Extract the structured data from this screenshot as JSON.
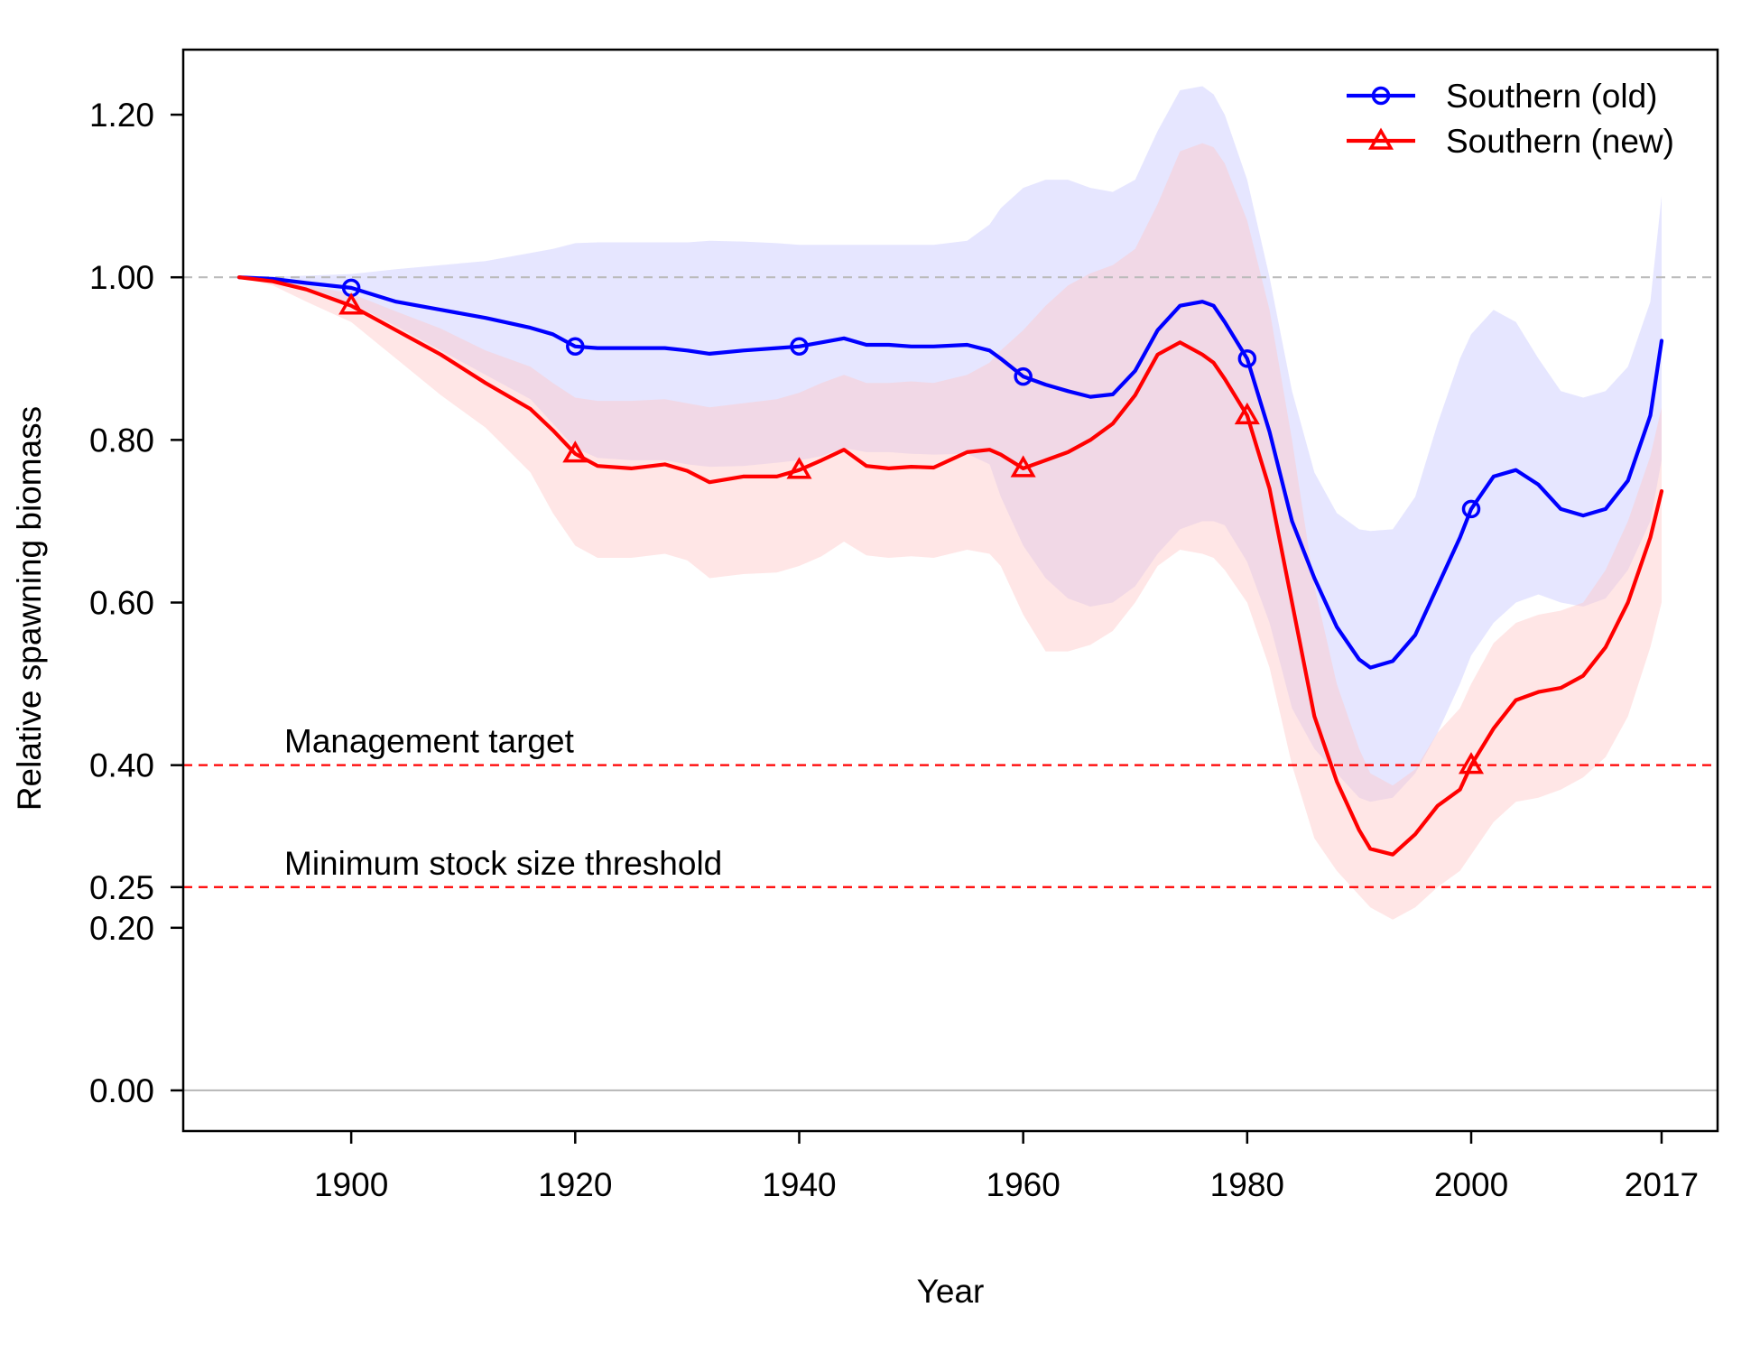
{
  "chart_data": {
    "type": "line",
    "xlabel": "Year",
    "ylabel": "Relative spawning biomass",
    "xlim": [
      1885,
      2022
    ],
    "ylim": [
      -0.05,
      1.28
    ],
    "x_ticks": [
      1900,
      1920,
      1940,
      1960,
      1980,
      2000,
      2017
    ],
    "x_tick_labels": [
      "1900",
      "1920",
      "1940",
      "1960",
      "1980",
      "2000",
      "2017"
    ],
    "y_ticks": [
      0.0,
      0.2,
      0.25,
      0.4,
      0.6,
      0.8,
      1.0,
      1.2
    ],
    "y_tick_labels": [
      "0.00",
      "0.20",
      "0.25",
      "0.40",
      "0.60",
      "0.80",
      "1.00",
      "1.20"
    ],
    "grid": false,
    "legend_position": "top-right",
    "reference_lines": [
      {
        "y": 1.0,
        "style": "dashed",
        "color": "#bbbbbb"
      },
      {
        "y": 0.0,
        "style": "solid",
        "color": "#bbbbbb"
      },
      {
        "y": 0.4,
        "style": "dashed",
        "color": "#ff0000",
        "label": "Management target"
      },
      {
        "y": 0.25,
        "style": "dashed",
        "color": "#ff0000",
        "label": "Minimum stock size threshold"
      }
    ],
    "series": [
      {
        "name": "Southern (old)",
        "color": "#0000ff",
        "band_color": "#c8c8ff",
        "marker": "circle",
        "marker_years": [
          1900,
          1920,
          1940,
          1960,
          1980,
          2000
        ],
        "x": [
          1890,
          1893,
          1896,
          1900,
          1904,
          1908,
          1912,
          1916,
          1918,
          1920,
          1922,
          1925,
          1928,
          1930,
          1932,
          1935,
          1938,
          1940,
          1942,
          1944,
          1946,
          1948,
          1950,
          1952,
          1955,
          1957,
          1958,
          1960,
          1962,
          1964,
          1966,
          1968,
          1970,
          1972,
          1974,
          1976,
          1977,
          1978,
          1980,
          1982,
          1984,
          1986,
          1988,
          1990,
          1991,
          1993,
          1995,
          1997,
          1999,
          2000,
          2002,
          2004,
          2006,
          2008,
          2010,
          2012,
          2014,
          2016,
          2017
        ],
        "values": [
          1.0,
          0.998,
          0.993,
          0.987,
          0.97,
          0.96,
          0.95,
          0.938,
          0.93,
          0.915,
          0.913,
          0.913,
          0.913,
          0.91,
          0.906,
          0.91,
          0.913,
          0.915,
          0.92,
          0.925,
          0.917,
          0.917,
          0.915,
          0.915,
          0.917,
          0.91,
          0.9,
          0.878,
          0.868,
          0.86,
          0.853,
          0.856,
          0.885,
          0.935,
          0.965,
          0.97,
          0.965,
          0.945,
          0.9,
          0.81,
          0.7,
          0.63,
          0.57,
          0.53,
          0.52,
          0.528,
          0.56,
          0.62,
          0.68,
          0.715,
          0.755,
          0.763,
          0.745,
          0.715,
          0.707,
          0.715,
          0.75,
          0.83,
          0.922
        ],
        "lower": [
          1.0,
          0.995,
          0.985,
          0.968,
          0.94,
          0.91,
          0.88,
          0.85,
          0.82,
          0.79,
          0.778,
          0.775,
          0.775,
          0.77,
          0.767,
          0.768,
          0.772,
          0.775,
          0.78,
          0.79,
          0.785,
          0.785,
          0.783,
          0.782,
          0.783,
          0.77,
          0.73,
          0.67,
          0.63,
          0.605,
          0.595,
          0.6,
          0.62,
          0.66,
          0.69,
          0.7,
          0.7,
          0.695,
          0.65,
          0.575,
          0.47,
          0.42,
          0.39,
          0.36,
          0.355,
          0.36,
          0.39,
          0.44,
          0.5,
          0.535,
          0.575,
          0.6,
          0.61,
          0.6,
          0.595,
          0.605,
          0.64,
          0.7,
          0.775
        ],
        "upper": [
          1.0,
          1.001,
          1.002,
          1.004,
          1.01,
          1.015,
          1.02,
          1.03,
          1.035,
          1.042,
          1.043,
          1.043,
          1.043,
          1.043,
          1.045,
          1.044,
          1.042,
          1.04,
          1.04,
          1.04,
          1.04,
          1.04,
          1.04,
          1.04,
          1.045,
          1.065,
          1.085,
          1.11,
          1.12,
          1.12,
          1.11,
          1.105,
          1.12,
          1.18,
          1.23,
          1.235,
          1.225,
          1.2,
          1.12,
          1.0,
          0.86,
          0.76,
          0.71,
          0.69,
          0.688,
          0.69,
          0.73,
          0.82,
          0.9,
          0.93,
          0.96,
          0.945,
          0.9,
          0.86,
          0.852,
          0.86,
          0.89,
          0.97,
          1.1
        ]
      },
      {
        "name": "Southern (new)",
        "color": "#ff0000",
        "band_color": "#ffc8c8",
        "marker": "triangle",
        "marker_years": [
          1900,
          1920,
          1940,
          1960,
          1980,
          2000
        ],
        "x": [
          1890,
          1893,
          1896,
          1900,
          1904,
          1908,
          1912,
          1916,
          1918,
          1920,
          1922,
          1925,
          1928,
          1930,
          1932,
          1935,
          1938,
          1940,
          1942,
          1944,
          1946,
          1948,
          1950,
          1952,
          1955,
          1957,
          1958,
          1960,
          1962,
          1964,
          1966,
          1968,
          1970,
          1972,
          1974,
          1976,
          1977,
          1978,
          1980,
          1982,
          1984,
          1986,
          1988,
          1990,
          1991,
          1993,
          1995,
          1997,
          1999,
          2000,
          2002,
          2004,
          2006,
          2008,
          2010,
          2012,
          2014,
          2016,
          2017
        ],
        "values": [
          1.0,
          0.995,
          0.985,
          0.965,
          0.935,
          0.905,
          0.87,
          0.838,
          0.812,
          0.783,
          0.768,
          0.765,
          0.77,
          0.762,
          0.748,
          0.755,
          0.755,
          0.763,
          0.775,
          0.788,
          0.768,
          0.765,
          0.767,
          0.766,
          0.785,
          0.788,
          0.782,
          0.765,
          0.775,
          0.785,
          0.8,
          0.82,
          0.855,
          0.905,
          0.92,
          0.905,
          0.895,
          0.875,
          0.83,
          0.74,
          0.6,
          0.46,
          0.38,
          0.32,
          0.297,
          0.29,
          0.315,
          0.35,
          0.37,
          0.4,
          0.445,
          0.48,
          0.49,
          0.495,
          0.51,
          0.545,
          0.6,
          0.68,
          0.737
        ],
        "lower": [
          1.0,
          0.99,
          0.97,
          0.945,
          0.9,
          0.855,
          0.815,
          0.76,
          0.71,
          0.67,
          0.655,
          0.655,
          0.66,
          0.652,
          0.63,
          0.635,
          0.637,
          0.645,
          0.657,
          0.675,
          0.658,
          0.655,
          0.657,
          0.655,
          0.665,
          0.66,
          0.645,
          0.585,
          0.54,
          0.54,
          0.548,
          0.565,
          0.6,
          0.645,
          0.665,
          0.66,
          0.655,
          0.64,
          0.6,
          0.52,
          0.4,
          0.31,
          0.27,
          0.24,
          0.225,
          0.21,
          0.225,
          0.25,
          0.27,
          0.29,
          0.33,
          0.355,
          0.36,
          0.37,
          0.385,
          0.41,
          0.46,
          0.545,
          0.6
        ],
        "upper": [
          1.0,
          0.998,
          0.99,
          0.98,
          0.958,
          0.937,
          0.91,
          0.89,
          0.87,
          0.852,
          0.848,
          0.848,
          0.85,
          0.845,
          0.84,
          0.845,
          0.85,
          0.858,
          0.87,
          0.88,
          0.87,
          0.87,
          0.872,
          0.87,
          0.88,
          0.895,
          0.91,
          0.935,
          0.965,
          0.99,
          1.005,
          1.015,
          1.035,
          1.09,
          1.155,
          1.165,
          1.16,
          1.14,
          1.07,
          0.96,
          0.8,
          0.62,
          0.5,
          0.42,
          0.39,
          0.375,
          0.395,
          0.44,
          0.47,
          0.5,
          0.55,
          0.575,
          0.585,
          0.59,
          0.6,
          0.64,
          0.7,
          0.78,
          0.84
        ]
      }
    ]
  }
}
